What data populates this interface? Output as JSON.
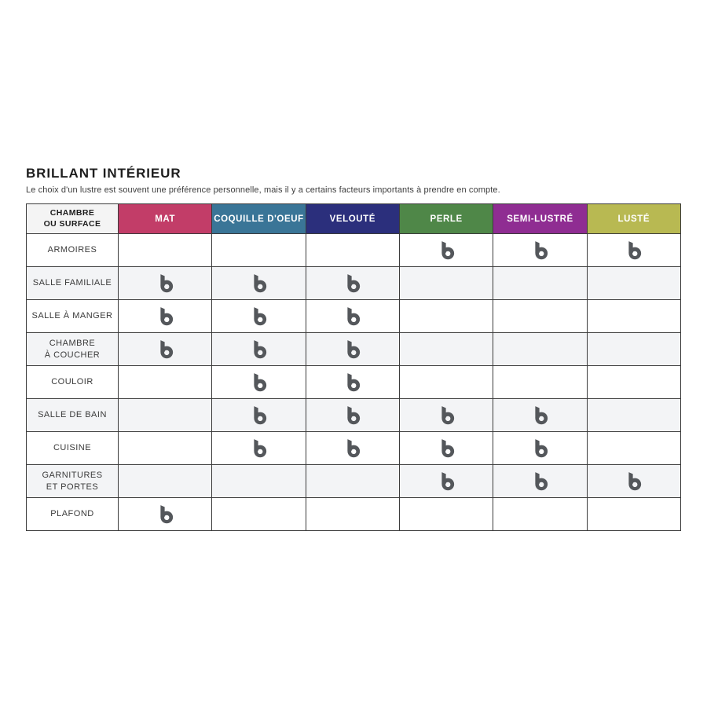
{
  "page": {
    "title": "BRILLANT INTÉRIEUR",
    "subtitle": "Le choix d'un lustre est souvent une préférence personnelle, mais il y a certains facteurs importants à prendre en compte."
  },
  "table": {
    "corner_header": "CHAMBRE\nOU SURFACE",
    "columns": [
      {
        "label": "MAT",
        "color": "#c23d68"
      },
      {
        "label": "COQUILLE D'OEUF",
        "color": "#3a7597"
      },
      {
        "label": "VELOUTÉ",
        "color": "#2b2f7c"
      },
      {
        "label": "PERLE",
        "color": "#4f8748"
      },
      {
        "label": "SEMI-LUSTRÉ",
        "color": "#8f2d92"
      },
      {
        "label": "LUSTÉ",
        "color": "#b8b952"
      }
    ],
    "check_icon": "brand-b-logo",
    "icon_color": "#54575b",
    "border_color": "#3b3b3b",
    "stripe_color": "#f3f4f6",
    "rows": [
      {
        "label": "ARMOIRES",
        "checks": [
          false,
          false,
          false,
          true,
          true,
          true
        ]
      },
      {
        "label": "SALLE FAMILIALE",
        "checks": [
          true,
          true,
          true,
          false,
          false,
          false
        ]
      },
      {
        "label": "SALLE À MANGER",
        "checks": [
          true,
          true,
          true,
          false,
          false,
          false
        ]
      },
      {
        "label": "CHAMBRE\nÀ COUCHER",
        "checks": [
          true,
          true,
          true,
          false,
          false,
          false
        ]
      },
      {
        "label": "COULOIR",
        "checks": [
          false,
          true,
          true,
          false,
          false,
          false
        ]
      },
      {
        "label": "SALLE DE BAIN",
        "checks": [
          false,
          true,
          true,
          true,
          true,
          false
        ]
      },
      {
        "label": "CUISINE",
        "checks": [
          false,
          true,
          true,
          true,
          true,
          false
        ]
      },
      {
        "label": "GARNITURES\nET PORTES",
        "checks": [
          false,
          false,
          false,
          true,
          true,
          true
        ]
      },
      {
        "label": "PLAFOND",
        "checks": [
          true,
          false,
          false,
          false,
          false,
          false
        ]
      }
    ]
  }
}
